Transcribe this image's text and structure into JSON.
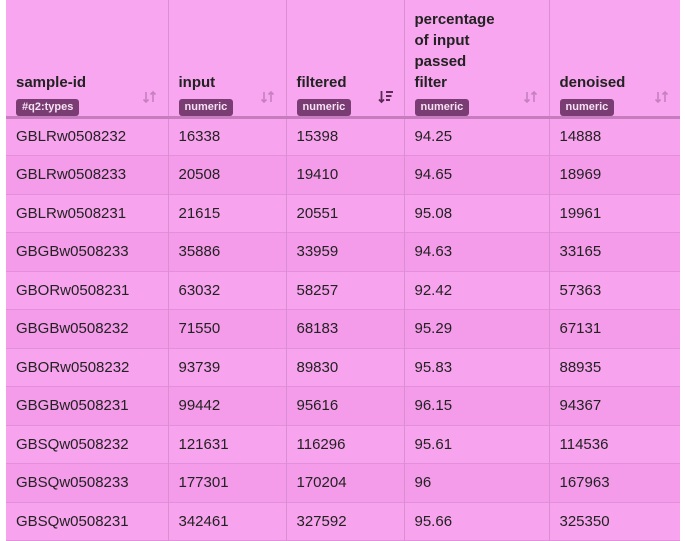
{
  "table": {
    "columns": [
      {
        "label": "sample-id",
        "type": "#q2:types"
      },
      {
        "label": "input",
        "type": "numeric"
      },
      {
        "label": "filtered",
        "type": "numeric"
      },
      {
        "label": "percentage\nof input\npassed\nfilter",
        "type": "numeric"
      },
      {
        "label": "denoised",
        "type": "numeric"
      }
    ],
    "rows": [
      {
        "sample_id": "GBLRw0508232",
        "input": "16338",
        "filtered": "15398",
        "percentage": "94.25",
        "denoised": "14888"
      },
      {
        "sample_id": "GBLRw0508233",
        "input": "20508",
        "filtered": "19410",
        "percentage": "94.65",
        "denoised": "18969"
      },
      {
        "sample_id": "GBLRw0508231",
        "input": "21615",
        "filtered": "20551",
        "percentage": "95.08",
        "denoised": "19961"
      },
      {
        "sample_id": "GBGBw0508233",
        "input": "35886",
        "filtered": "33959",
        "percentage": "94.63",
        "denoised": "33165"
      },
      {
        "sample_id": "GBORw0508231",
        "input": "63032",
        "filtered": "58257",
        "percentage": "92.42",
        "denoised": "57363"
      },
      {
        "sample_id": "GBGBw0508232",
        "input": "71550",
        "filtered": "68183",
        "percentage": "95.29",
        "denoised": "67131"
      },
      {
        "sample_id": "GBORw0508232",
        "input": "93739",
        "filtered": "89830",
        "percentage": "95.83",
        "denoised": "88935"
      },
      {
        "sample_id": "GBGBw0508231",
        "input": "99442",
        "filtered": "95616",
        "percentage": "96.15",
        "denoised": "94367"
      },
      {
        "sample_id": "GBSQw0508232",
        "input": "121631",
        "filtered": "116296",
        "percentage": "95.61",
        "denoised": "114536"
      },
      {
        "sample_id": "GBSQw0508233",
        "input": "177301",
        "filtered": "170204",
        "percentage": "96",
        "denoised": "167963"
      },
      {
        "sample_id": "GBSQw0508231",
        "input": "342461",
        "filtered": "327592",
        "percentage": "95.66",
        "denoised": "325350"
      }
    ]
  },
  "icons": {
    "sort_unsorted": "sort-icon",
    "sort_active": "sort-descending-icon"
  },
  "colors": {
    "table_bg": "#f7a6ef",
    "badge_bg": "#7a3d73",
    "badge_text": "#f5e1f3"
  }
}
